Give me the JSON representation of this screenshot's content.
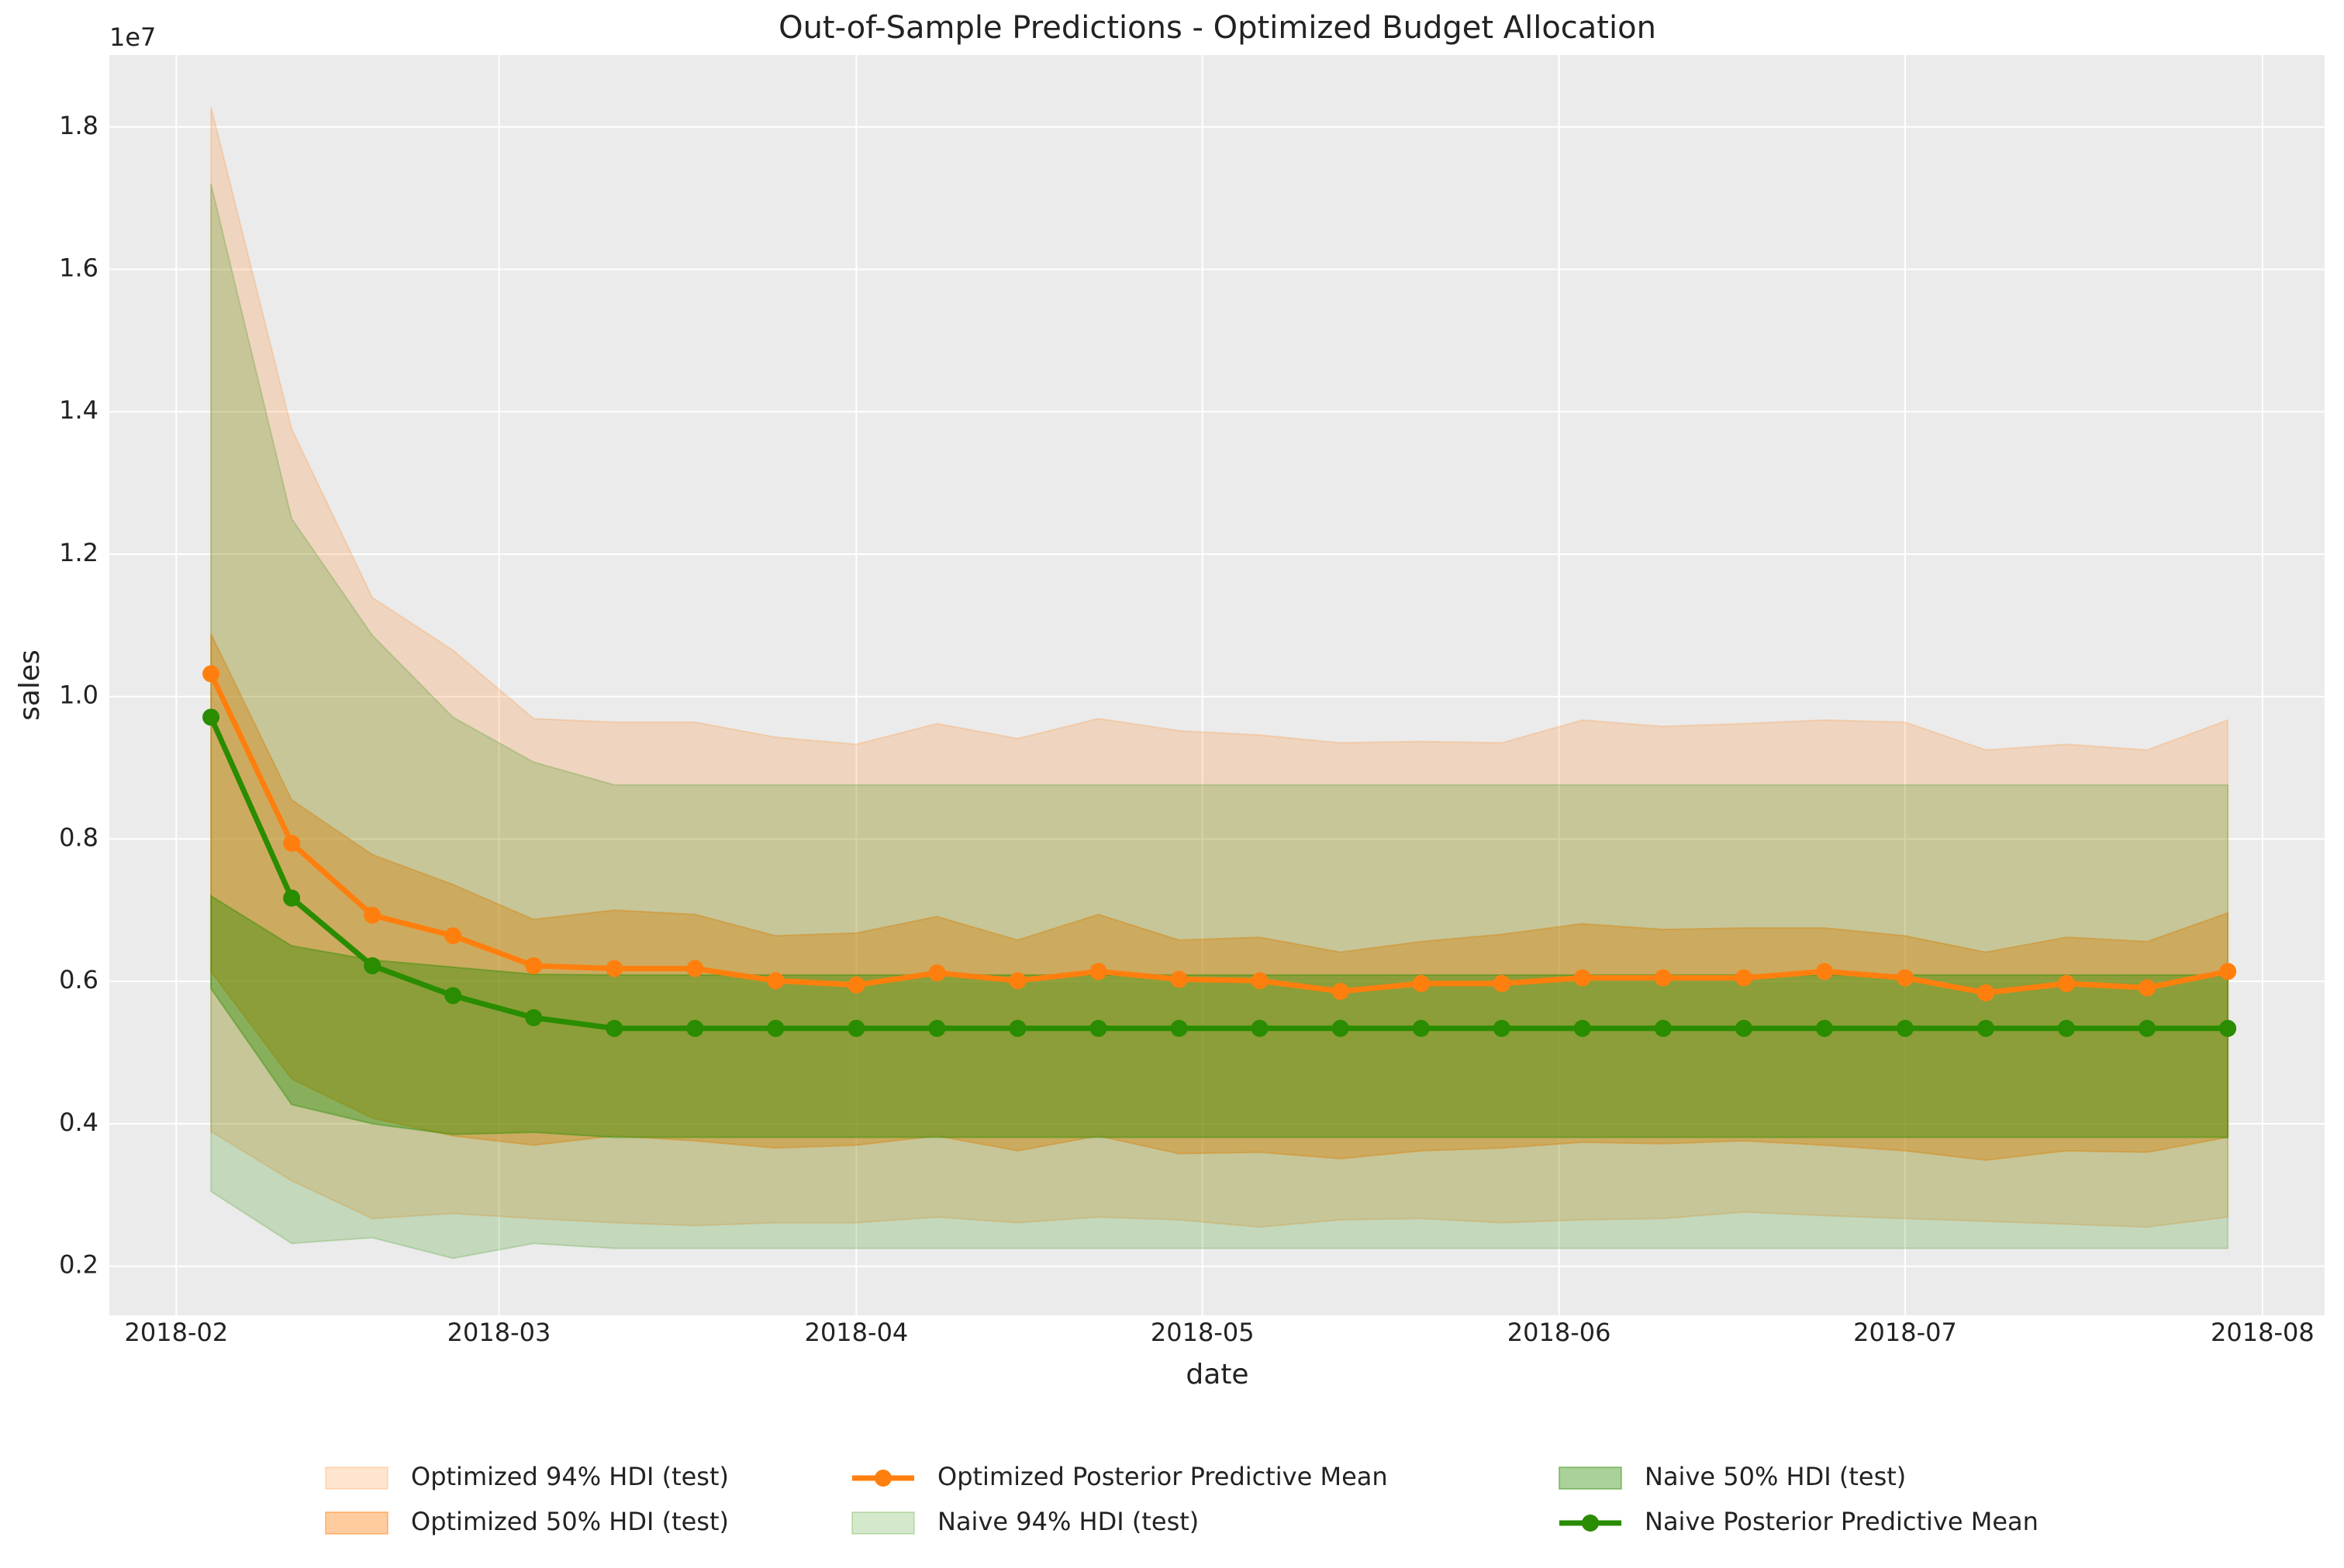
{
  "chart_data": {
    "type": "line",
    "title": "Out-of-Sample Predictions - Optimized Budget Allocation",
    "xlabel": "date",
    "ylabel": "sales",
    "y_offset_label": "1e7",
    "grid": true,
    "legend": "lower center",
    "xlim": [
      -1.26,
      26.2
    ],
    "xticks": [
      {
        "value": -0.43,
        "label": "2018-02"
      },
      {
        "value": 3.57,
        "label": "2018-03"
      },
      {
        "value": 8,
        "label": "2018-04"
      },
      {
        "value": 12.29,
        "label": "2018-05"
      },
      {
        "value": 16.71,
        "label": "2018-06"
      },
      {
        "value": 21,
        "label": "2018-07"
      },
      {
        "value": 25.43,
        "label": "2018-08"
      }
    ],
    "ylim": [
      0.131,
      1.901
    ],
    "yticks": [
      0.2,
      0.4,
      0.6,
      0.8,
      {
        "value": 1.0,
        "label": "1.0"
      },
      1.2,
      1.4,
      1.6,
      1.8
    ],
    "series": [
      {
        "name": "Optimized 94% HDI (test)",
        "color": "#ff7f0e",
        "alpha": 0.2,
        "upper": [
          1.828,
          1.376,
          1.139,
          1.065,
          0.969,
          0.964,
          0.964,
          0.943,
          0.933,
          0.962,
          0.941,
          0.969,
          0.952,
          0.946,
          0.935,
          0.937,
          0.935,
          0.967,
          0.958,
          0.962,
          0.967,
          0.964,
          0.925,
          0.933,
          0.925,
          0.967
        ],
        "lower": [
          0.389,
          0.32,
          0.267,
          0.274,
          0.267,
          0.261,
          0.257,
          0.261,
          0.261,
          0.269,
          0.261,
          0.269,
          0.265,
          0.255,
          0.265,
          0.267,
          0.261,
          0.265,
          0.267,
          0.276,
          0.271,
          0.267,
          0.263,
          0.259,
          0.255,
          0.269
        ]
      },
      {
        "name": "Optimized 50% HDI (test)",
        "color": "#ff7f0e",
        "alpha": 0.4,
        "upper": [
          1.088,
          0.855,
          0.778,
          0.736,
          0.687,
          0.7,
          0.694,
          0.664,
          0.668,
          0.691,
          0.658,
          0.694,
          0.658,
          0.662,
          0.641,
          0.656,
          0.666,
          0.681,
          0.673,
          0.675,
          0.675,
          0.664,
          0.641,
          0.662,
          0.656,
          0.696
        ],
        "lower": [
          0.614,
          0.463,
          0.408,
          0.383,
          0.37,
          0.383,
          0.376,
          0.366,
          0.37,
          0.383,
          0.362,
          0.383,
          0.358,
          0.36,
          0.351,
          0.362,
          0.366,
          0.374,
          0.372,
          0.376,
          0.37,
          0.362,
          0.349,
          0.362,
          0.36,
          0.381
        ]
      },
      {
        "name": "Optimized Posterior Predictive Mean",
        "color": "#ff7f0e",
        "values": [
          1.032,
          0.794,
          0.693,
          0.664,
          0.622,
          0.618,
          0.618,
          0.601,
          0.595,
          0.612,
          0.601,
          0.614,
          0.603,
          0.601,
          0.586,
          0.597,
          0.597,
          0.605,
          0.605,
          0.605,
          0.614,
          0.605,
          0.584,
          0.597,
          0.591,
          0.614
        ]
      },
      {
        "name": "Naive 94% HDI (test)",
        "color": "#2a8c00",
        "alpha": 0.2,
        "upper": [
          1.72,
          1.25,
          1.086,
          0.971,
          0.908,
          0.876,
          0.876,
          0.876,
          0.876,
          0.876,
          0.876,
          0.876,
          0.876,
          0.876,
          0.876,
          0.876,
          0.876,
          0.876,
          0.876,
          0.876,
          0.876,
          0.876,
          0.876,
          0.876,
          0.876,
          0.876
        ],
        "lower": [
          0.305,
          0.232,
          0.24,
          0.211,
          0.232,
          0.225,
          0.225,
          0.225,
          0.225,
          0.225,
          0.225,
          0.225,
          0.225,
          0.225,
          0.225,
          0.225,
          0.225,
          0.225,
          0.225,
          0.225,
          0.225,
          0.225,
          0.225,
          0.225,
          0.225,
          0.225
        ]
      },
      {
        "name": "Naive 50% HDI (test)",
        "color": "#2a8c00",
        "alpha": 0.4,
        "upper": [
          0.72,
          0.65,
          0.63,
          0.62,
          0.61,
          0.609,
          0.609,
          0.609,
          0.609,
          0.609,
          0.609,
          0.609,
          0.609,
          0.609,
          0.609,
          0.609,
          0.609,
          0.609,
          0.609,
          0.609,
          0.609,
          0.609,
          0.609,
          0.609,
          0.609,
          0.609
        ],
        "lower": [
          0.59,
          0.427,
          0.4,
          0.385,
          0.388,
          0.381,
          0.381,
          0.381,
          0.381,
          0.381,
          0.381,
          0.381,
          0.381,
          0.381,
          0.381,
          0.381,
          0.381,
          0.381,
          0.381,
          0.381,
          0.381,
          0.381,
          0.381,
          0.381,
          0.381,
          0.381
        ]
      },
      {
        "name": "Naive Posterior Predictive Mean",
        "color": "#2a8c00",
        "values": [
          0.971,
          0.717,
          0.622,
          0.58,
          0.549,
          0.534,
          0.534,
          0.534,
          0.534,
          0.534,
          0.534,
          0.534,
          0.534,
          0.534,
          0.534,
          0.534,
          0.534,
          0.534,
          0.534,
          0.534,
          0.534,
          0.534,
          0.534,
          0.534,
          0.534,
          0.534
        ]
      }
    ]
  }
}
